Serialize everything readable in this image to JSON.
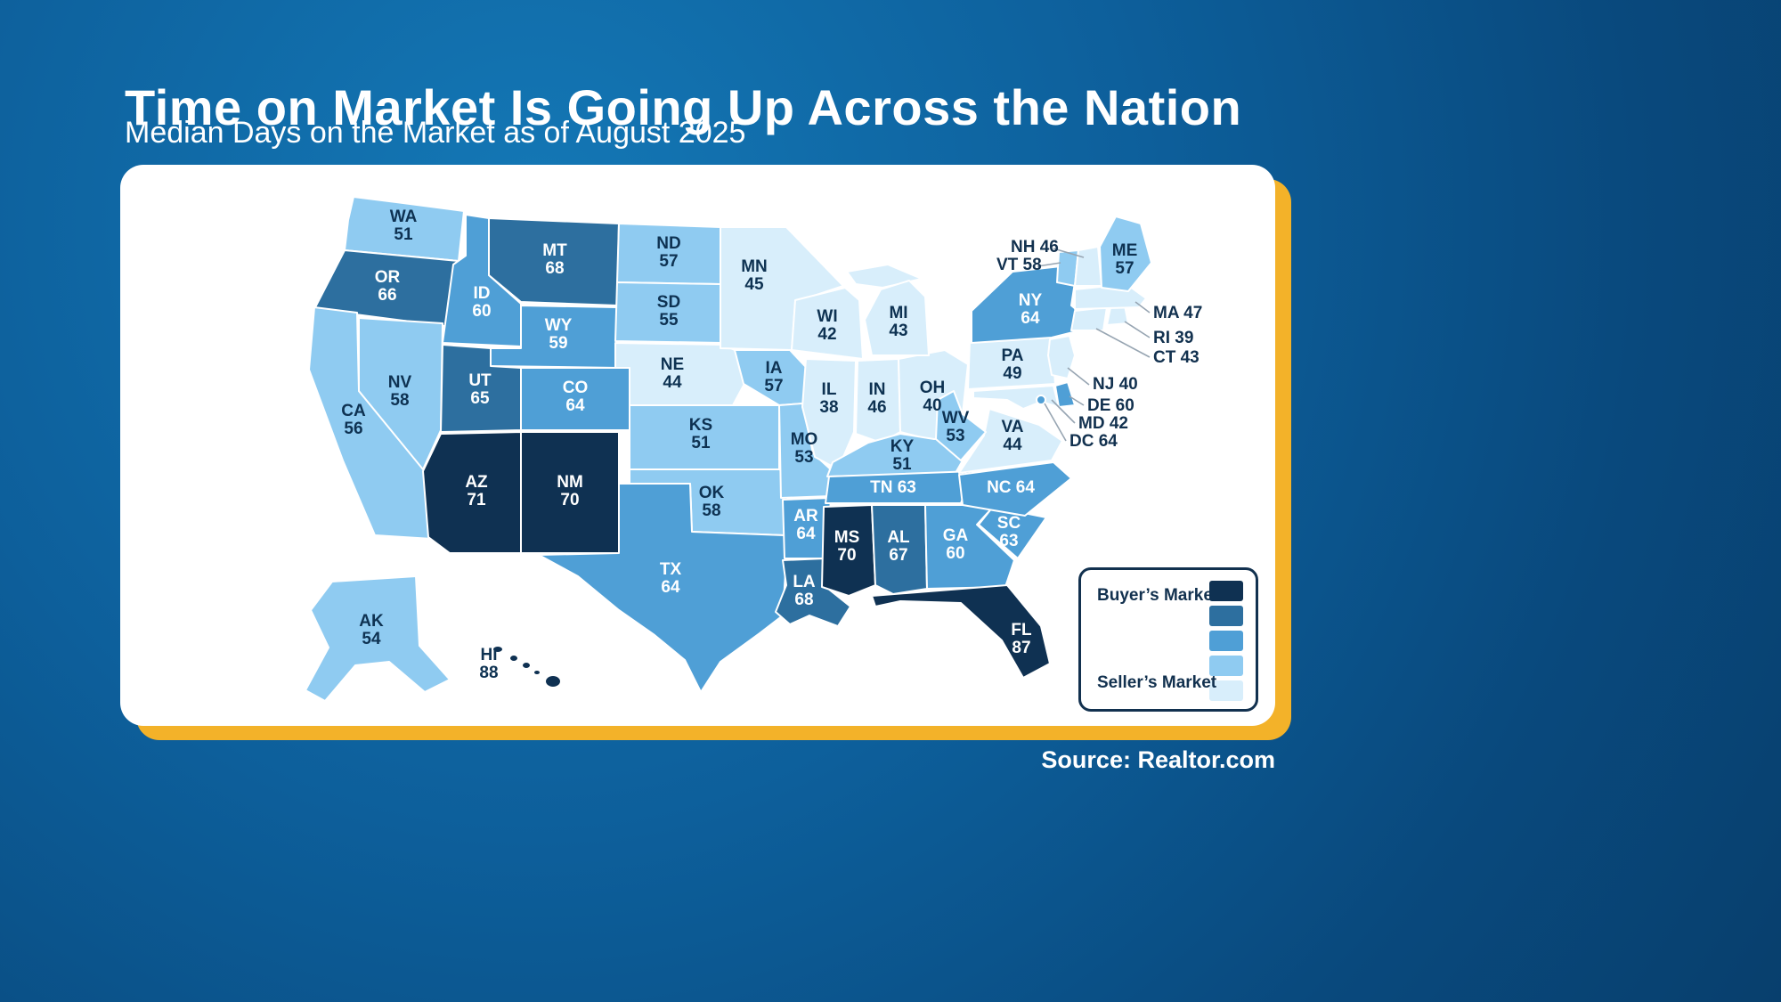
{
  "title": "Time on Market Is Going Up Across the Nation",
  "subtitle": "Median Days on the Market as of August 2025",
  "source_label": "Source: Realtor.com",
  "legend": {
    "buyers": "Buyer’s Market",
    "sellers": "Seller’s Market"
  },
  "colors": {
    "scale": [
      "#0f3152",
      "#2d6f9f",
      "#4f9fd6",
      "#8fcbf1",
      "#d8eefb"
    ],
    "label_dark": "#0e3252",
    "label_light": "#ffffff",
    "card_accent": "#f3b229",
    "background_light": "#1478b6",
    "background_dark": "#083f6d",
    "leader_line": "#97a5b2"
  },
  "chart_data": {
    "type": "choropleth_map",
    "title": "Time on Market Is Going Up Across the Nation",
    "subtitle": "Median Days on the Market as of August 2025",
    "metric": "Median days on the market",
    "as_of": "August 2025",
    "source": "Realtor.com",
    "legend_top_label": "Buyer’s Market",
    "legend_bottom_label": "Seller’s Market",
    "scale": {
      "thresholds": [
        70,
        65,
        59,
        51
      ],
      "colors": [
        "#0f3152",
        "#2d6f9f",
        "#4f9fd6",
        "#8fcbf1",
        "#d8eefb"
      ]
    },
    "states": [
      {
        "abbr": "WA",
        "value": 51
      },
      {
        "abbr": "OR",
        "value": 66
      },
      {
        "abbr": "CA",
        "value": 56
      },
      {
        "abbr": "NV",
        "value": 58
      },
      {
        "abbr": "ID",
        "value": 60
      },
      {
        "abbr": "MT",
        "value": 68
      },
      {
        "abbr": "WY",
        "value": 59
      },
      {
        "abbr": "UT",
        "value": 65
      },
      {
        "abbr": "CO",
        "value": 64
      },
      {
        "abbr": "AZ",
        "value": 71
      },
      {
        "abbr": "NM",
        "value": 70
      },
      {
        "abbr": "AK",
        "value": 54
      },
      {
        "abbr": "HI",
        "value": 88
      },
      {
        "abbr": "ND",
        "value": 57
      },
      {
        "abbr": "SD",
        "value": 55
      },
      {
        "abbr": "NE",
        "value": 44
      },
      {
        "abbr": "KS",
        "value": 51
      },
      {
        "abbr": "OK",
        "value": 58
      },
      {
        "abbr": "TX",
        "value": 64
      },
      {
        "abbr": "MN",
        "value": 45
      },
      {
        "abbr": "IA",
        "value": 57
      },
      {
        "abbr": "MO",
        "value": 53
      },
      {
        "abbr": "AR",
        "value": 64
      },
      {
        "abbr": "LA",
        "value": 68
      },
      {
        "abbr": "WI",
        "value": 42
      },
      {
        "abbr": "IL",
        "value": 38
      },
      {
        "abbr": "IN",
        "value": 46
      },
      {
        "abbr": "MI",
        "value": 43
      },
      {
        "abbr": "OH",
        "value": 40
      },
      {
        "abbr": "KY",
        "value": 51
      },
      {
        "abbr": "TN",
        "value": 63
      },
      {
        "abbr": "MS",
        "value": 70
      },
      {
        "abbr": "AL",
        "value": 67
      },
      {
        "abbr": "GA",
        "value": 60
      },
      {
        "abbr": "FL",
        "value": 87
      },
      {
        "abbr": "SC",
        "value": 63
      },
      {
        "abbr": "NC",
        "value": 64
      },
      {
        "abbr": "VA",
        "value": 44
      },
      {
        "abbr": "WV",
        "value": 53
      },
      {
        "abbr": "PA",
        "value": 49
      },
      {
        "abbr": "NY",
        "value": 64
      },
      {
        "abbr": "NJ",
        "value": 40
      },
      {
        "abbr": "DE",
        "value": 60
      },
      {
        "abbr": "MD",
        "value": 42
      },
      {
        "abbr": "DC",
        "value": 64
      },
      {
        "abbr": "CT",
        "value": 43
      },
      {
        "abbr": "RI",
        "value": 39
      },
      {
        "abbr": "MA",
        "value": 47
      },
      {
        "abbr": "VT",
        "value": 58
      },
      {
        "abbr": "NH",
        "value": 46
      },
      {
        "abbr": "ME",
        "value": 57
      }
    ]
  }
}
